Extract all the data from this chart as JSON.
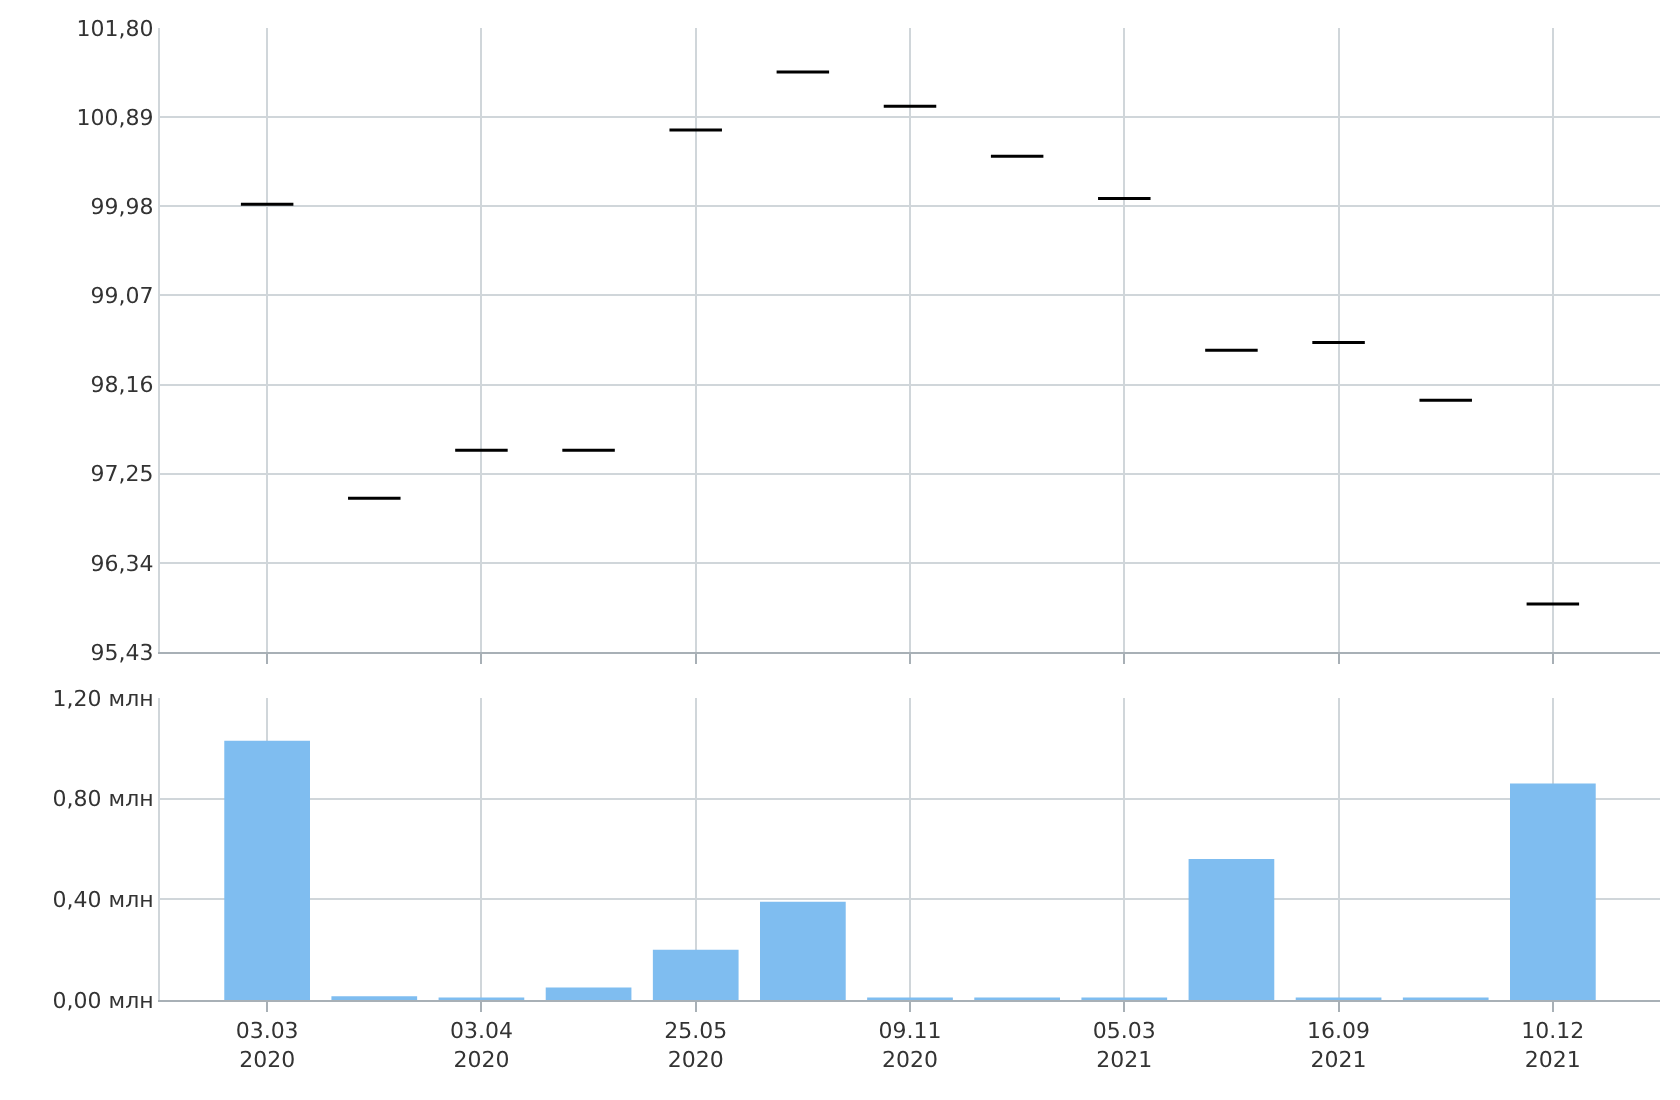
{
  "chart_data": [
    {
      "type": "candlestick",
      "categories": [
        null,
        null,
        null,
        null,
        null,
        null,
        null,
        null,
        null,
        null,
        null,
        null,
        null
      ],
      "ohlc": [
        [
          100.0,
          100.0,
          100.0,
          100.0
        ],
        [
          97.0,
          97.0,
          97.0,
          97.0
        ],
        [
          97.49,
          97.49,
          97.49,
          97.49
        ],
        [
          97.49,
          97.49,
          97.49,
          97.49
        ],
        [
          100.76,
          100.76,
          100.76,
          100.76
        ],
        [
          101.35,
          101.35,
          101.35,
          101.35
        ],
        [
          101.0,
          101.0,
          101.0,
          101.0
        ],
        [
          100.49,
          100.49,
          100.49,
          100.49
        ],
        [
          100.06,
          100.06,
          100.06,
          100.06
        ],
        [
          98.51,
          98.51,
          98.51,
          98.51
        ],
        [
          98.59,
          98.59,
          98.59,
          98.59
        ],
        [
          98.0,
          98.0,
          98.0,
          98.0
        ],
        [
          95.92,
          95.92,
          95.92,
          95.92
        ]
      ],
      "color": "#000000",
      "ylim": [
        95.43,
        101.8
      ],
      "yticks": [
        {
          "value": 95.43,
          "label": "95,43"
        },
        {
          "value": 96.34,
          "label": "96,34"
        },
        {
          "value": 97.25,
          "label": "97,25"
        },
        {
          "value": 98.16,
          "label": "98,16"
        },
        {
          "value": 99.07,
          "label": "99,07"
        },
        {
          "value": 99.98,
          "label": "99,98"
        },
        {
          "value": 100.89,
          "label": "100,89"
        },
        {
          "value": 101.8,
          "label": "101,80"
        }
      ],
      "grid": true,
      "tick_labels": "y"
    },
    {
      "type": "bar",
      "categories": [
        "03.03\n2020",
        null,
        "03.04\n2020",
        null,
        "25.05\n2020",
        null,
        "09.11\n2020",
        null,
        "05.03\n2021",
        null,
        "16.09\n2021",
        null,
        "10.12\n2021"
      ],
      "values": [
        1.03,
        0.015,
        0.01,
        0.05,
        0.2,
        0.39,
        0.01,
        0.01,
        0.01,
        0.56,
        0.01,
        0.01,
        0.86
      ],
      "color": "#7fbdf0",
      "ylim": [
        0,
        1.2
      ],
      "yticks": [
        {
          "value": 0,
          "label": "0,00 млн"
        },
        {
          "value": 0.4,
          "label": "0,40 млн"
        },
        {
          "value": 0.8,
          "label": "0,80 млн"
        },
        {
          "value": 1.2,
          "label": "1,20 млн"
        }
      ],
      "grid": true
    }
  ]
}
